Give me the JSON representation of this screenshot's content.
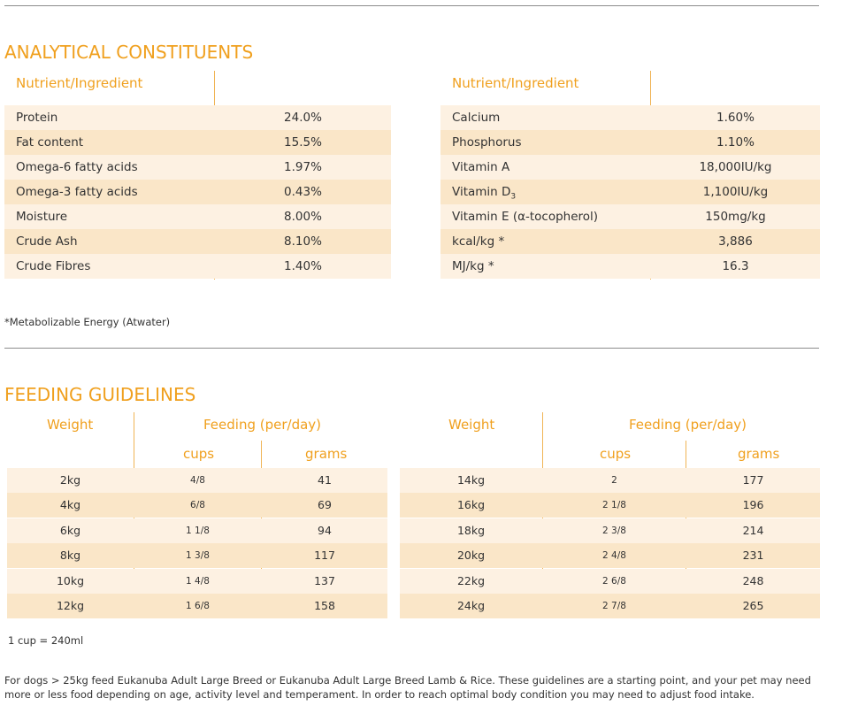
{
  "analytical": {
    "title": "ANALYTICAL CONSTITUENTS",
    "left": {
      "header": "Nutrient/Ingredient",
      "rows": [
        {
          "name": "Protein",
          "value": "24.0%"
        },
        {
          "name": "Fat content",
          "value": "15.5%"
        },
        {
          "name": "Omega-6 fatty acids",
          "value": "1.97%"
        },
        {
          "name": "Omega-3 fatty acids",
          "value": "0.43%"
        },
        {
          "name": "Moisture",
          "value": "8.00%"
        },
        {
          "name": "Crude Ash",
          "value": "8.10%"
        },
        {
          "name": "Crude Fibres",
          "value": "1.40%"
        }
      ]
    },
    "right": {
      "header": "Nutrient/Ingredient",
      "rows": [
        {
          "name": "Calcium",
          "value": "1.60%"
        },
        {
          "name": "Phosphorus",
          "value": "1.10%"
        },
        {
          "name": "Vitamin A",
          "value": "18,000IU/kg"
        },
        {
          "name": "Vitamin D",
          "sub": "3",
          "value": "1,100IU/kg"
        },
        {
          "name": "Vitamin E (α-tocopherol)",
          "value": "150mg/kg"
        },
        {
          "name": "kcal/kg *",
          "value": "3,886"
        },
        {
          "name": "MJ/kg *",
          "value": "16.3"
        }
      ]
    },
    "footnote": "*Metabolizable Energy (Atwater)"
  },
  "feeding": {
    "title": "FEEDING GUIDELINES",
    "weight_header": "Weight",
    "feeding_header": "Feeding (per/day)",
    "cups_header": "cups",
    "grams_header": "grams",
    "left_rows": [
      {
        "weight": "2kg",
        "cups": "4/8",
        "grams": "41"
      },
      {
        "weight": "4kg",
        "cups": "6/8",
        "grams": "69"
      },
      {
        "weight": "6kg",
        "cups": "1 1/8",
        "grams": "94"
      },
      {
        "weight": "8kg",
        "cups": "1 3/8",
        "grams": "117"
      },
      {
        "weight": "10kg",
        "cups": "1 4/8",
        "grams": "137"
      },
      {
        "weight": "12kg",
        "cups": "1 6/8",
        "grams": "158"
      }
    ],
    "right_rows": [
      {
        "weight": "14kg",
        "cups": "2",
        "grams": "177"
      },
      {
        "weight": "16kg",
        "cups": "2 1/8",
        "grams": "196"
      },
      {
        "weight": "18kg",
        "cups": "2 3/8",
        "grams": "214"
      },
      {
        "weight": "20kg",
        "cups": "2 4/8",
        "grams": "231"
      },
      {
        "weight": "22kg",
        "cups": "2 6/8",
        "grams": "248"
      },
      {
        "weight": "24kg",
        "cups": "2 7/8",
        "grams": "265"
      }
    ],
    "cup_note": "1 cup = 240ml",
    "paragraph": "For dogs > 25kg feed Eukanuba Adult Large Breed or Eukanuba Adult Large Breed Lamb & Rice. These guidelines are a starting point, and your pet may need more or less food depending on age, activity level and temperament. In order to reach optimal body condition you may need to adjust food intake."
  }
}
